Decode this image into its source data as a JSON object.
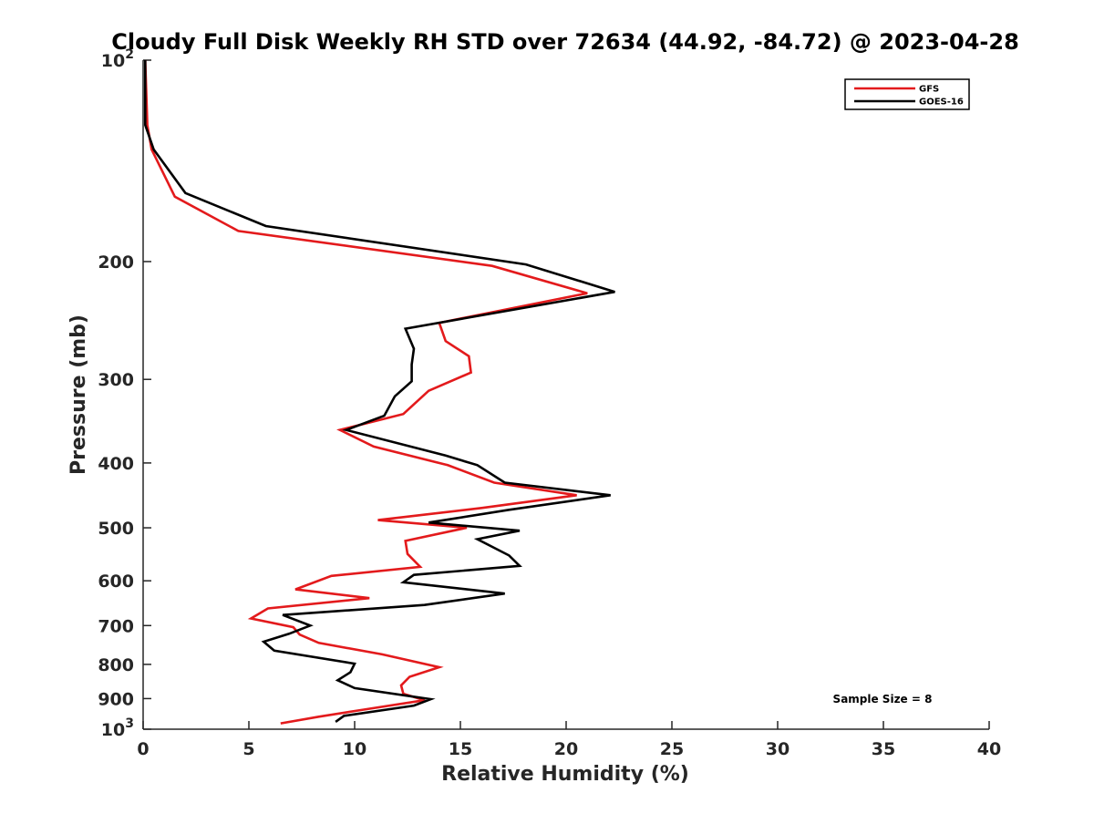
{
  "chart_data": {
    "type": "line",
    "title": "Cloudy Full Disk Weekly RH STD over 72634 (44.92, -84.72) @ 2023-04-28",
    "xlabel": "Relative Humidity (%)",
    "ylabel": "Pressure (mb)",
    "xlim": [
      0,
      40
    ],
    "ylim": [
      100,
      1000
    ],
    "y_scale": "log",
    "y_reversed": true,
    "grid": false,
    "legend_position": "top-right",
    "x_ticks": [
      0,
      5,
      10,
      15,
      20,
      25,
      30,
      35,
      40
    ],
    "x_tick_labels": [
      "0",
      "5",
      "10",
      "15",
      "20",
      "25",
      "30",
      "35",
      "40"
    ],
    "y_ticks": [
      100,
      200,
      300,
      400,
      500,
      600,
      700,
      800,
      900,
      1000
    ],
    "y_tick_labels": [
      {
        "base": "10",
        "exp": "2"
      },
      {
        "base": "200",
        "exp": ""
      },
      {
        "base": "300",
        "exp": ""
      },
      {
        "base": "400",
        "exp": ""
      },
      {
        "base": "500",
        "exp": ""
      },
      {
        "base": "600",
        "exp": ""
      },
      {
        "base": "700",
        "exp": ""
      },
      {
        "base": "800",
        "exp": ""
      },
      {
        "base": "900",
        "exp": ""
      },
      {
        "base": "10",
        "exp": "3"
      }
    ],
    "annotation": "Sample Size = 8",
    "series": [
      {
        "name": "GFS",
        "color": "#e31a1c",
        "points": [
          [
            0.1,
            100
          ],
          [
            0.2,
            125
          ],
          [
            0.4,
            136
          ],
          [
            1.5,
            160
          ],
          [
            4.5,
            180
          ],
          [
            16.5,
            203
          ],
          [
            21.0,
            223
          ],
          [
            14.0,
            247
          ],
          [
            14.3,
            263
          ],
          [
            15.4,
            277
          ],
          [
            15.5,
            293
          ],
          [
            13.5,
            312
          ],
          [
            12.3,
            338
          ],
          [
            9.3,
            357
          ],
          [
            10.9,
            378
          ],
          [
            14.4,
            403
          ],
          [
            16.6,
            428
          ],
          [
            20.5,
            447
          ],
          [
            16.0,
            467
          ],
          [
            11.1,
            487
          ],
          [
            15.3,
            500
          ],
          [
            12.4,
            523
          ],
          [
            12.5,
            547
          ],
          [
            13.1,
            572
          ],
          [
            8.9,
            590
          ],
          [
            7.2,
            618
          ],
          [
            10.7,
            637
          ],
          [
            5.9,
            660
          ],
          [
            5.1,
            683
          ],
          [
            7.1,
            704
          ],
          [
            7.4,
            722
          ],
          [
            8.3,
            743
          ],
          [
            11.3,
            773
          ],
          [
            14.0,
            808
          ],
          [
            12.6,
            835
          ],
          [
            12.2,
            860
          ],
          [
            12.3,
            885
          ],
          [
            13.3,
            905
          ],
          [
            10.4,
            935
          ],
          [
            8.3,
            958
          ],
          [
            6.5,
            980
          ]
        ]
      },
      {
        "name": "GOES-16",
        "color": "#000000",
        "points": [
          [
            0.1,
            100
          ],
          [
            0.1,
            125
          ],
          [
            0.5,
            136
          ],
          [
            2.0,
            158
          ],
          [
            5.8,
            177
          ],
          [
            18.1,
            202
          ],
          [
            22.3,
            222
          ],
          [
            12.4,
            252
          ],
          [
            12.8,
            270
          ],
          [
            12.7,
            285
          ],
          [
            12.7,
            302
          ],
          [
            11.9,
            318
          ],
          [
            11.4,
            340
          ],
          [
            9.6,
            357
          ],
          [
            14.3,
            390
          ],
          [
            15.8,
            403
          ],
          [
            17.1,
            428
          ],
          [
            22.1,
            447
          ],
          [
            17.3,
            470
          ],
          [
            13.5,
            491
          ],
          [
            17.8,
            505
          ],
          [
            15.8,
            520
          ],
          [
            17.3,
            550
          ],
          [
            17.8,
            570
          ],
          [
            12.8,
            588
          ],
          [
            12.3,
            603
          ],
          [
            17.1,
            627
          ],
          [
            13.3,
            652
          ],
          [
            6.6,
            675
          ],
          [
            7.9,
            700
          ],
          [
            6.9,
            720
          ],
          [
            5.7,
            740
          ],
          [
            6.2,
            763
          ],
          [
            10.0,
            798
          ],
          [
            9.8,
            822
          ],
          [
            9.2,
            845
          ],
          [
            10.0,
            868
          ],
          [
            13.6,
            902
          ],
          [
            12.8,
            922
          ],
          [
            9.5,
            955
          ],
          [
            9.1,
            975
          ]
        ]
      }
    ]
  }
}
